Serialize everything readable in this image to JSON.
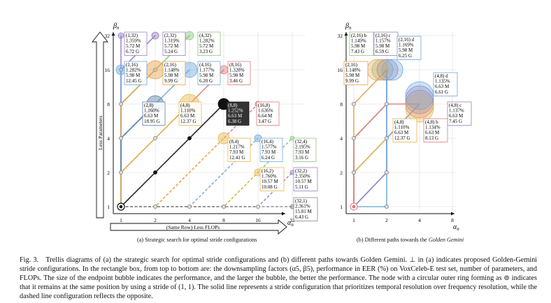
{
  "panel_a": {
    "y_axis_symbol": "β_n",
    "x_axis_symbol": "α_n",
    "y_arrow_label": "Less Parameters",
    "x_arrow_label": "(Same Row) Less FLOPs",
    "y_ticks": [
      "1",
      "2",
      "4",
      "8",
      "16",
      "32"
    ],
    "x_ticks": [
      "1",
      "2",
      "4",
      "8",
      "16",
      "32"
    ],
    "subcaption": "(a) Strategic search for optimal stride configurations",
    "boxes": [
      {
        "lines": [
          "(1,32)",
          "1.359%",
          "5.72 M",
          "6.72 G"
        ],
        "color": "#9b7fc4"
      },
      {
        "lines": [
          "(2,32)",
          "1.319%",
          "5.72 M",
          "5.24 G"
        ],
        "color": "#9b7fc4"
      },
      {
        "lines": [
          "(4,32)",
          "1.282%",
          "5.72 M",
          "3.23 G"
        ],
        "color": "#8cc77e"
      },
      {
        "lines": [
          "(1,16)",
          "1.282%",
          "5.98 M",
          "12.45 G"
        ],
        "color": "#6fa8dc"
      },
      {
        "lines": [
          "(2,16)",
          "1.148%",
          "5.98 M",
          "9.99 G"
        ],
        "color": "#e6a04c"
      },
      {
        "lines": [
          "(4,16)",
          "1.177%",
          "5.98 M",
          "6.20 G"
        ],
        "color": "#6fa8dc"
      },
      {
        "lines": [
          "(8,16)",
          "1.328%",
          "5.98 M",
          "3.46 G"
        ],
        "color": "#e07a7a"
      },
      {
        "lines": [
          "(2,8)",
          "1.160%",
          "6.63 M",
          "18.95 G"
        ],
        "color": "#5b7fa6"
      },
      {
        "lines": [
          "(4,8)",
          "1.110%",
          "6.63 M",
          "12.37 G"
        ],
        "color": "#e6b84c"
      },
      {
        "lines": [
          "(8,8)",
          "1.252%",
          "6.63 M",
          "6.38 G"
        ],
        "color": "#111111"
      },
      {
        "lines": [
          "(16,8)",
          "1.636%",
          "6.64 M",
          "3.47 G"
        ],
        "color": "#e07a7a"
      },
      {
        "lines": [
          "(8,4)",
          "1.217%",
          "7.93 M",
          "12.41 G"
        ],
        "color": "#e6b84c"
      },
      {
        "lines": [
          "(16,4)",
          "1.577%",
          "7.93 M",
          "6.24 G"
        ],
        "color": "#6fa8dc"
      },
      {
        "lines": [
          "(32,4)",
          "2.195%",
          "7.93 M",
          "3.16 G"
        ],
        "color": "#8cc77e"
      },
      {
        "lines": [
          "(16,2)",
          "1.760%",
          "10.57 M",
          "10.08 G"
        ],
        "color": "#e6b84c"
      },
      {
        "lines": [
          "(32,2)",
          "2.350%",
          "10.57 M",
          "5.11 G"
        ],
        "color": "#9b7fc4"
      },
      {
        "lines": [
          "(32,1)",
          "2.361%",
          "15.81 M",
          "6.43 G"
        ],
        "color": "#888888"
      }
    ]
  },
  "panel_b": {
    "y_axis_symbol": "β_n",
    "x_axis_symbol": "α_n",
    "y_ticks": [
      "1",
      "2",
      "4",
      "8",
      "16",
      "32"
    ],
    "x_ticks": [
      "1",
      "2",
      "4",
      "8"
    ],
    "subcaption_prefix": "(b) Different paths towards the ",
    "subcaption_emph": "Golden Gemini",
    "boxes": [
      {
        "lines": [
          "(2,16) b",
          "1.149%",
          "5.98 M",
          "7.43 G"
        ],
        "color": "#8cc77e"
      },
      {
        "lines": [
          "(2,16) c",
          "1.157%",
          "5.98 M",
          "6.59 G"
        ],
        "color": "#9b7fc4"
      },
      {
        "lines": [
          "(2,16) d",
          "1.169%",
          "5.98 M",
          "6.25 G"
        ],
        "color": "#6fa8dc"
      },
      {
        "lines": [
          "(2,16)",
          "1.148%",
          "5.98 M",
          "9.99 G"
        ],
        "color": "#e6a04c"
      },
      {
        "lines": [
          "(4,8) d",
          "1.135%",
          "6.63 M",
          "6.61 G"
        ],
        "color": "#6fa8dc"
      },
      {
        "lines": [
          "(4,8) c",
          "1.137%",
          "6.63 M",
          "7.45 G"
        ],
        "color": "#9b7fc4"
      },
      {
        "lines": [
          "(4,8)",
          "1.110%",
          "6.63 M",
          "12.37 G"
        ],
        "color": "#e6b84c"
      },
      {
        "lines": [
          "(4,8) b",
          "1.134%",
          "6.63 M",
          "8.13 G"
        ],
        "color": "#e07a7a"
      }
    ]
  },
  "caption": {
    "label": "Fig. 3.",
    "text": "Trellis diagrams of (a) the strategic search for optimal stride configurations and (b) different paths towards Golden Gemini. ⊥ in (a) indicates proposed Golden-Gemini stride configurations. In the rectangle box, from top to bottom are: the downsampling factors (α5, β5), performance in EER (%) on VoxCeleb-E test set, number of parameters, and FLOPs. The size of the endpoint bubble indicates the performance, and the larger the bubble, the better the performance. The node with a circular outer ring forming as ⊚ indicates that it remains at the same position by using a stride of (1, 1). The solid line represents a stride configuration that prioritizes temporal resolution over frequency resolution, while the dashed line configuration reflects the opposite."
  }
}
